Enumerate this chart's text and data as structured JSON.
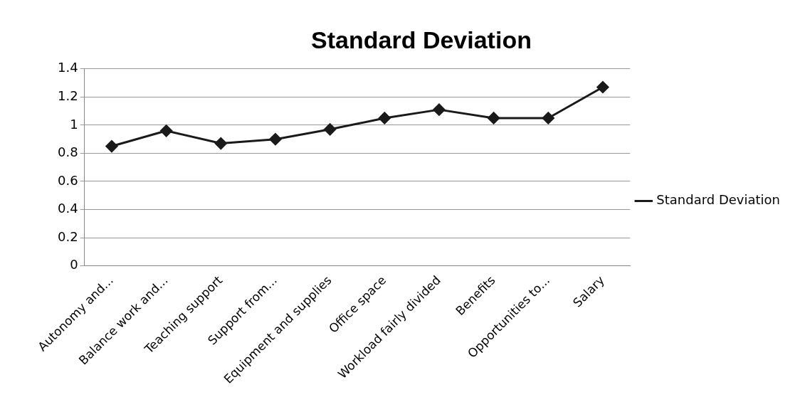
{
  "chart_data": {
    "type": "line",
    "title": "Standard Deviation",
    "categories": [
      "Autonomy and...",
      "Balance work and...",
      "Teaching support",
      "Support from...",
      "Equipment and supplies",
      "Office space",
      "Workload fairly divided",
      "Benefits",
      "Opportunities to...",
      "Salary"
    ],
    "series": [
      {
        "name": "Standard Deviation",
        "color": "#1a1a1a",
        "values": [
          0.85,
          0.96,
          0.87,
          0.9,
          0.97,
          1.05,
          1.11,
          1.05,
          1.05,
          1.27
        ]
      }
    ],
    "ylim": [
      0,
      1.4
    ],
    "yticks": [
      0,
      0.2,
      0.4,
      0.6,
      0.8,
      1,
      1.2,
      1.4
    ],
    "grid": "y",
    "legend": "right",
    "marker": "diamond",
    "line_style": "solid"
  }
}
